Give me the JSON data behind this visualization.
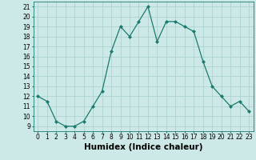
{
  "xlabel": "Humidex (Indice chaleur)",
  "x": [
    0,
    1,
    2,
    3,
    4,
    5,
    6,
    7,
    8,
    9,
    10,
    11,
    12,
    13,
    14,
    15,
    16,
    17,
    18,
    19,
    20,
    21,
    22,
    23
  ],
  "y": [
    12,
    11.5,
    9.5,
    9,
    9,
    9.5,
    11,
    12.5,
    16.5,
    19,
    18,
    19.5,
    21,
    17.5,
    19.5,
    19.5,
    19,
    18.5,
    15.5,
    13,
    12,
    11,
    11.5,
    10.5
  ],
  "line_color": "#1a7a6e",
  "marker": "D",
  "marker_size": 2.0,
  "bg_color": "#cce9e7",
  "grid_color": "#aed4d0",
  "ylim": [
    8.5,
    21.5
  ],
  "xlim": [
    -0.5,
    23.5
  ],
  "yticks": [
    9,
    10,
    11,
    12,
    13,
    14,
    15,
    16,
    17,
    18,
    19,
    20,
    21
  ],
  "xticks": [
    0,
    1,
    2,
    3,
    4,
    5,
    6,
    7,
    8,
    9,
    10,
    11,
    12,
    13,
    14,
    15,
    16,
    17,
    18,
    19,
    20,
    21,
    22,
    23
  ],
  "tick_fontsize": 5.5,
  "xlabel_fontsize": 7.5,
  "linewidth": 0.9
}
